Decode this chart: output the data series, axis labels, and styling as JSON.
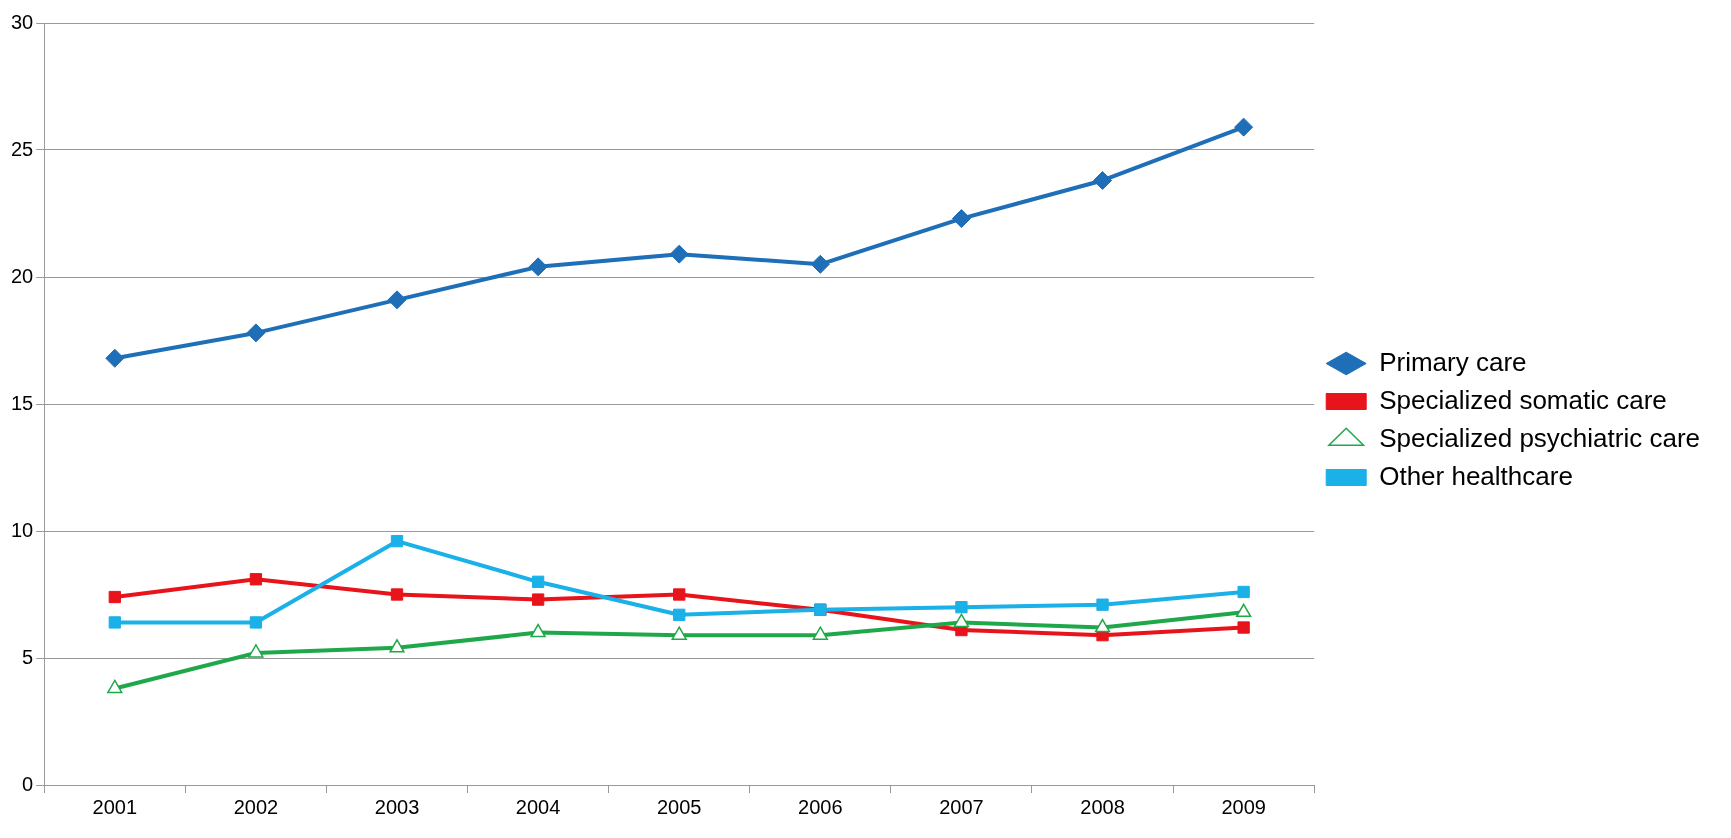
{
  "chart_data": {
    "type": "line",
    "categories": [
      "2001",
      "2002",
      "2003",
      "2004",
      "2005",
      "2006",
      "2007",
      "2008",
      "2009"
    ],
    "series": [
      {
        "name": "Primary care",
        "color": "#1f6fb8",
        "marker": "diamond",
        "values": [
          16.8,
          17.8,
          19.1,
          20.4,
          20.9,
          20.5,
          22.3,
          23.8,
          25.9
        ]
      },
      {
        "name": "Specialized somatic care",
        "color": "#e8141b",
        "marker": "square",
        "values": [
          7.4,
          8.1,
          7.5,
          7.3,
          7.5,
          6.9,
          6.1,
          5.9,
          6.2
        ]
      },
      {
        "name": "Specialized psychiatric care",
        "color": "#1fa84a",
        "marker": "triangle",
        "values": [
          3.8,
          5.2,
          5.4,
          6.0,
          5.9,
          5.9,
          6.4,
          6.2,
          6.8
        ]
      },
      {
        "name": "Other healthcare",
        "color": "#1ab0e8",
        "marker": "square",
        "values": [
          6.4,
          6.4,
          9.6,
          8.0,
          6.7,
          6.9,
          7.0,
          7.1,
          7.6
        ]
      }
    ],
    "ylim": [
      0,
      30
    ],
    "yticks": [
      0,
      5,
      10,
      15,
      20,
      25,
      30
    ],
    "grid": "y",
    "legend": "right",
    "line_style": "solid"
  }
}
